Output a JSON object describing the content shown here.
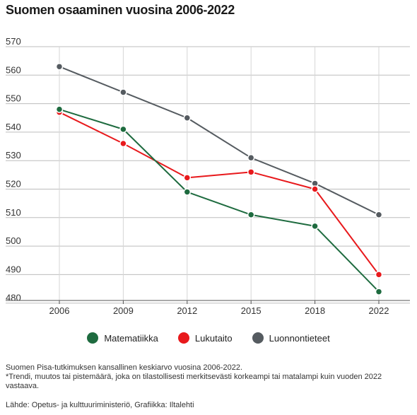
{
  "title": "Suomen osaaminen vuosina 2006-2022",
  "chart_data": {
    "type": "line",
    "title": "Suomen osaaminen vuosina 2006-2022",
    "xlabel": "",
    "ylabel": "",
    "categories": [
      "2006",
      "2009",
      "2012",
      "2015",
      "2018",
      "2022"
    ],
    "ylim": [
      478,
      570
    ],
    "yticks": [
      570,
      560,
      550,
      540,
      530,
      520,
      510,
      500,
      490,
      480
    ],
    "grid": true,
    "legend_position": "bottom",
    "series": [
      {
        "name": "Matematiikka",
        "color": "#1e6b3f",
        "values": [
          548,
          541,
          519,
          511,
          507,
          484
        ]
      },
      {
        "name": "Lukutaito",
        "color": "#e8191c",
        "values": [
          547,
          536,
          524,
          526,
          520,
          490
        ]
      },
      {
        "name": "Luonnontieteet",
        "color": "#555b60",
        "values": [
          563,
          554,
          545,
          531,
          522,
          511
        ]
      }
    ]
  },
  "footer": {
    "note1": "Suomen Pisa-tutkimuksen kansallinen keskiarvo vuosina 2006-2022.",
    "note2": "*Trendi, muutos tai pistemäärä, joka on tilastollisesti merkitsevästi  korkeampi tai matalampi kuin vuoden 2022 vastaava.",
    "source": "Lähde: Opetus- ja kulttuuriministeriö, Grafiikka: Iltalehti"
  }
}
